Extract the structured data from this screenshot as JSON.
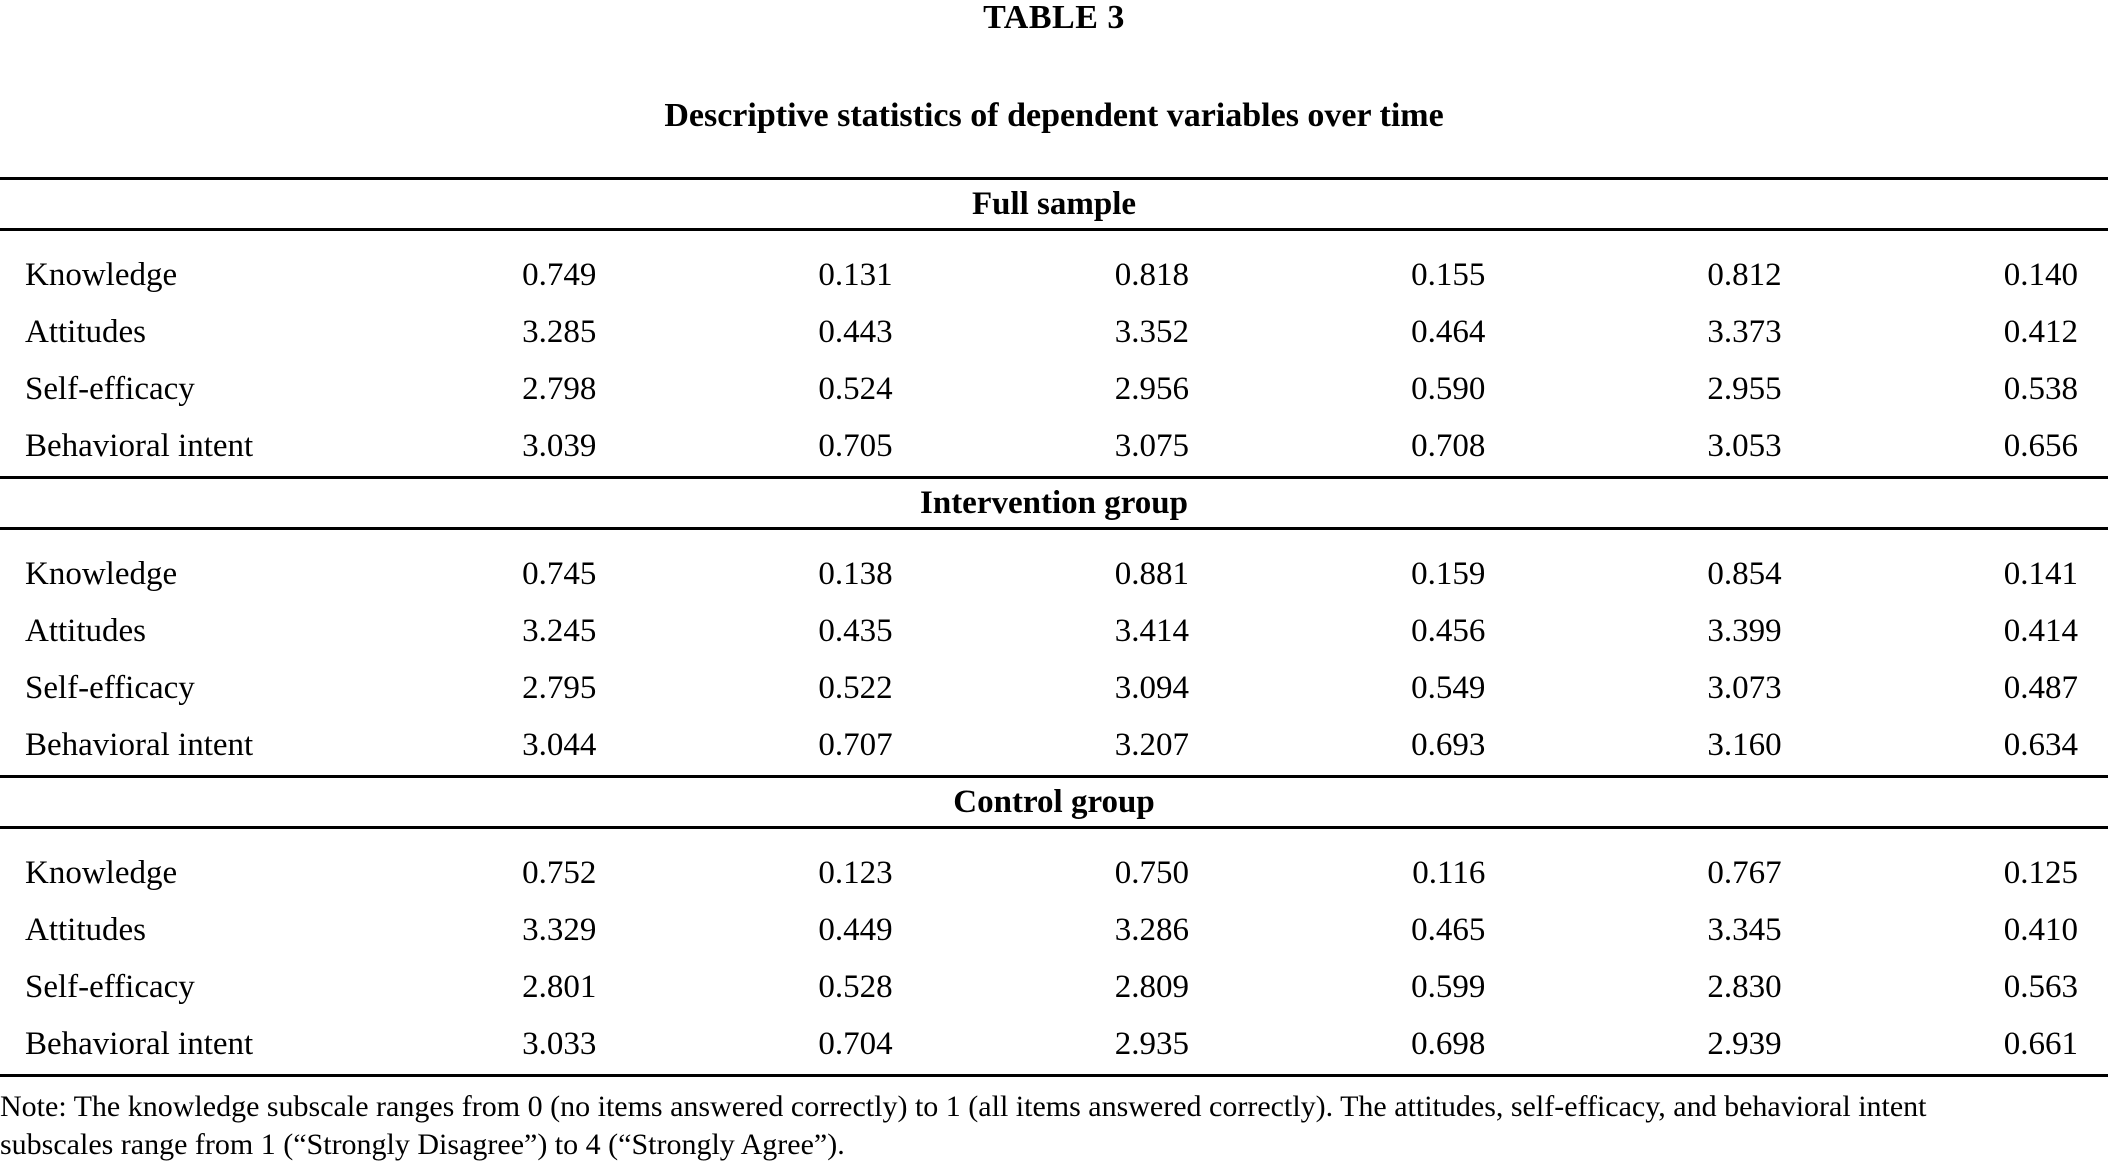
{
  "title": "TABLE 3",
  "subtitle": "Descriptive statistics of dependent variables over time",
  "colors": {
    "text": "#000000",
    "background": "#ffffff",
    "rule": "#000000"
  },
  "sections": [
    {
      "label": "Full sample",
      "rows": [
        {
          "label": "Knowledge",
          "values": [
            "0.749",
            "0.131",
            "0.818",
            "0.155",
            "0.812",
            "0.140"
          ]
        },
        {
          "label": "Attitudes",
          "values": [
            "3.285",
            "0.443",
            "3.352",
            "0.464",
            "3.373",
            "0.412"
          ]
        },
        {
          "label": "Self-efficacy",
          "values": [
            "2.798",
            "0.524",
            "2.956",
            "0.590",
            "2.955",
            "0.538"
          ]
        },
        {
          "label": "Behavioral intent",
          "values": [
            "3.039",
            "0.705",
            "3.075",
            "0.708",
            "3.053",
            "0.656"
          ]
        }
      ]
    },
    {
      "label": "Intervention group",
      "rows": [
        {
          "label": "Knowledge",
          "values": [
            "0.745",
            "0.138",
            "0.881",
            "0.159",
            "0.854",
            "0.141"
          ]
        },
        {
          "label": "Attitudes",
          "values": [
            "3.245",
            "0.435",
            "3.414",
            "0.456",
            "3.399",
            "0.414"
          ]
        },
        {
          "label": "Self-efficacy",
          "values": [
            "2.795",
            "0.522",
            "3.094",
            "0.549",
            "3.073",
            "0.487"
          ]
        },
        {
          "label": "Behavioral intent",
          "values": [
            "3.044",
            "0.707",
            "3.207",
            "0.693",
            "3.160",
            "0.634"
          ]
        }
      ]
    },
    {
      "label": "Control group",
      "rows": [
        {
          "label": "Knowledge",
          "values": [
            "0.752",
            "0.123",
            "0.750",
            "0.116",
            "0.767",
            "0.125"
          ]
        },
        {
          "label": "Attitudes",
          "values": [
            "3.329",
            "0.449",
            "3.286",
            "0.465",
            "3.345",
            "0.410"
          ]
        },
        {
          "label": "Self-efficacy",
          "values": [
            "2.801",
            "0.528",
            "2.809",
            "0.599",
            "2.830",
            "0.563"
          ]
        },
        {
          "label": "Behavioral intent",
          "values": [
            "3.033",
            "0.704",
            "2.935",
            "0.698",
            "2.939",
            "0.661"
          ]
        }
      ]
    }
  ],
  "note": {
    "line1": "Note: The knowledge subscale ranges from 0 (no items answered correctly) to 1 (all items answered correctly). The attitudes, self-efficacy, and behavioral intent",
    "line2": "subscales range from 1 (“Strongly Disagree”) to 4 (“Strongly Agree”)."
  }
}
